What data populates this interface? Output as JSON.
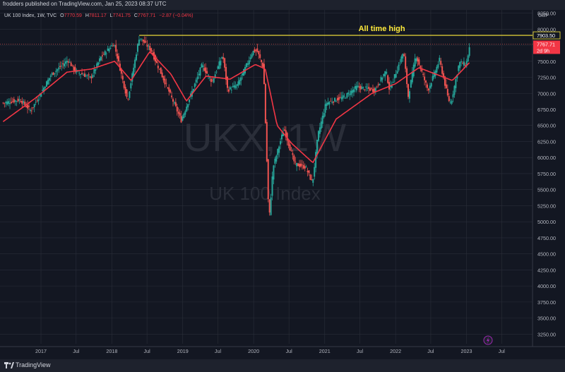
{
  "header": {
    "published": "frodders published on TradingView.com, Jan 25, 2023 08:37 UTC"
  },
  "legend": {
    "symbol": "UK 100 Index, 1W, TVC",
    "open_label": "O",
    "open": "7770.59",
    "high_label": "H",
    "high": "7811.17",
    "low_label": "L",
    "low": "7741.75",
    "close_label": "C",
    "close": "7767.71",
    "change": "−2.87 (−0.04%)"
  },
  "footer": {
    "brand": "TradingView"
  },
  "colors": {
    "background": "#131722",
    "grid": "#2a2e39",
    "up": "#26a69a",
    "down": "#ef5350",
    "ma": "#f23645",
    "ath_line": "#ffeb3b",
    "text": "#b2b5be"
  },
  "chart_data": {
    "type": "candlestick",
    "watermark": {
      "symbol": "UKX, 1W",
      "name": "UK 100 Index"
    },
    "currency": "GBP",
    "ylim": [
      3100,
      8300
    ],
    "y_ticks": [
      8250,
      8000,
      7750,
      7500,
      7250,
      7000,
      6750,
      6500,
      6250,
      6000,
      5750,
      5500,
      5250,
      5000,
      4750,
      4500,
      4250,
      4000,
      3750,
      3500,
      3250
    ],
    "y_tick_labels": [
      "8250.00",
      "8000.00",
      "7750.00",
      "7500.00",
      "7250.00",
      "7000.00",
      "6750.00",
      "6500.00",
      "6250.00",
      "6000.00",
      "5750.00",
      "5500.00",
      "5250.00",
      "5000.00",
      "4750.00",
      "4500.00",
      "4250.00",
      "4000.00",
      "3750.00",
      "3500.00",
      "3250.00"
    ],
    "x_ticks": [
      {
        "date": "2017-01-01",
        "label": "2017"
      },
      {
        "date": "2017-07-01",
        "label": "Jul"
      },
      {
        "date": "2018-01-01",
        "label": "2018"
      },
      {
        "date": "2018-07-01",
        "label": "Jul"
      },
      {
        "date": "2019-01-01",
        "label": "2019"
      },
      {
        "date": "2019-07-01",
        "label": "Jul"
      },
      {
        "date": "2020-01-01",
        "label": "2020"
      },
      {
        "date": "2020-07-01",
        "label": "Jul"
      },
      {
        "date": "2021-01-01",
        "label": "2021"
      },
      {
        "date": "2021-07-01",
        "label": "Jul"
      },
      {
        "date": "2022-01-01",
        "label": "2022"
      },
      {
        "date": "2022-07-01",
        "label": "Jul"
      },
      {
        "date": "2023-01-01",
        "label": "2023"
      },
      {
        "date": "2023-07-01",
        "label": "Jul"
      }
    ],
    "price_key_points": [
      [
        "2016-06-20",
        6850
      ],
      [
        "2016-09-15",
        6900
      ],
      [
        "2016-11-10",
        6730
      ],
      [
        "2017-02-20",
        7280
      ],
      [
        "2017-05-20",
        7520
      ],
      [
        "2017-06-25",
        7350
      ],
      [
        "2017-09-15",
        7240
      ],
      [
        "2017-11-05",
        7560
      ],
      [
        "2018-01-12",
        7780
      ],
      [
        "2018-03-23",
        6890
      ],
      [
        "2018-05-22",
        7880
      ],
      [
        "2018-07-20",
        7680
      ],
      [
        "2018-10-26",
        7000
      ],
      [
        "2018-12-24",
        6580
      ],
      [
        "2019-04-10",
        7440
      ],
      [
        "2019-06-01",
        7180
      ],
      [
        "2019-07-26",
        7600
      ],
      [
        "2019-08-20",
        7050
      ],
      [
        "2019-10-10",
        7130
      ],
      [
        "2019-12-27",
        7650
      ],
      [
        "2020-01-17",
        7670
      ],
      [
        "2020-02-21",
        7400
      ],
      [
        "2020-03-20",
        5000
      ],
      [
        "2020-04-10",
        5850
      ],
      [
        "2020-06-05",
        6450
      ],
      [
        "2020-07-31",
        5900
      ],
      [
        "2020-09-25",
        5850
      ],
      [
        "2020-10-30",
        5600
      ],
      [
        "2020-11-27",
        6350
      ],
      [
        "2021-01-08",
        6850
      ],
      [
        "2021-04-15",
        6950
      ],
      [
        "2021-06-15",
        7100
      ],
      [
        "2021-09-15",
        7050
      ],
      [
        "2021-11-12",
        7350
      ],
      [
        "2021-12-01",
        7050
      ],
      [
        "2022-02-11",
        7650
      ],
      [
        "2022-03-07",
        6950
      ],
      [
        "2022-04-15",
        7600
      ],
      [
        "2022-06-17",
        7050
      ],
      [
        "2022-08-15",
        7520
      ],
      [
        "2022-09-30",
        6900
      ],
      [
        "2022-10-13",
        6850
      ],
      [
        "2022-11-25",
        7480
      ],
      [
        "2022-12-30",
        7450
      ],
      [
        "2023-01-20",
        7770
      ]
    ],
    "ma_key_points": [
      [
        "2016-06-20",
        6560
      ],
      [
        "2016-12-01",
        6920
      ],
      [
        "2017-05-15",
        7330
      ],
      [
        "2017-09-20",
        7380
      ],
      [
        "2018-01-15",
        7500
      ],
      [
        "2018-04-10",
        7200
      ],
      [
        "2018-07-15",
        7650
      ],
      [
        "2018-11-01",
        7300
      ],
      [
        "2019-01-20",
        6880
      ],
      [
        "2019-05-01",
        7270
      ],
      [
        "2019-09-01",
        7220
      ],
      [
        "2020-01-10",
        7450
      ],
      [
        "2020-03-01",
        7380
      ],
      [
        "2020-05-01",
        6500
      ],
      [
        "2020-07-15",
        6220
      ],
      [
        "2020-11-01",
        5920
      ],
      [
        "2021-03-01",
        6600
      ],
      [
        "2021-09-01",
        7000
      ],
      [
        "2022-01-01",
        7150
      ],
      [
        "2022-05-01",
        7400
      ],
      [
        "2022-10-20",
        7200
      ],
      [
        "2023-01-20",
        7490
      ]
    ],
    "ath": {
      "label": "All time high",
      "value": 7903.5,
      "value_label": "7903.50",
      "start": "2018-05-22",
      "end": "2023-02-10"
    },
    "last": {
      "value": 7767.71,
      "value_label": "7767.71",
      "countdown": "2d 9h"
    }
  }
}
